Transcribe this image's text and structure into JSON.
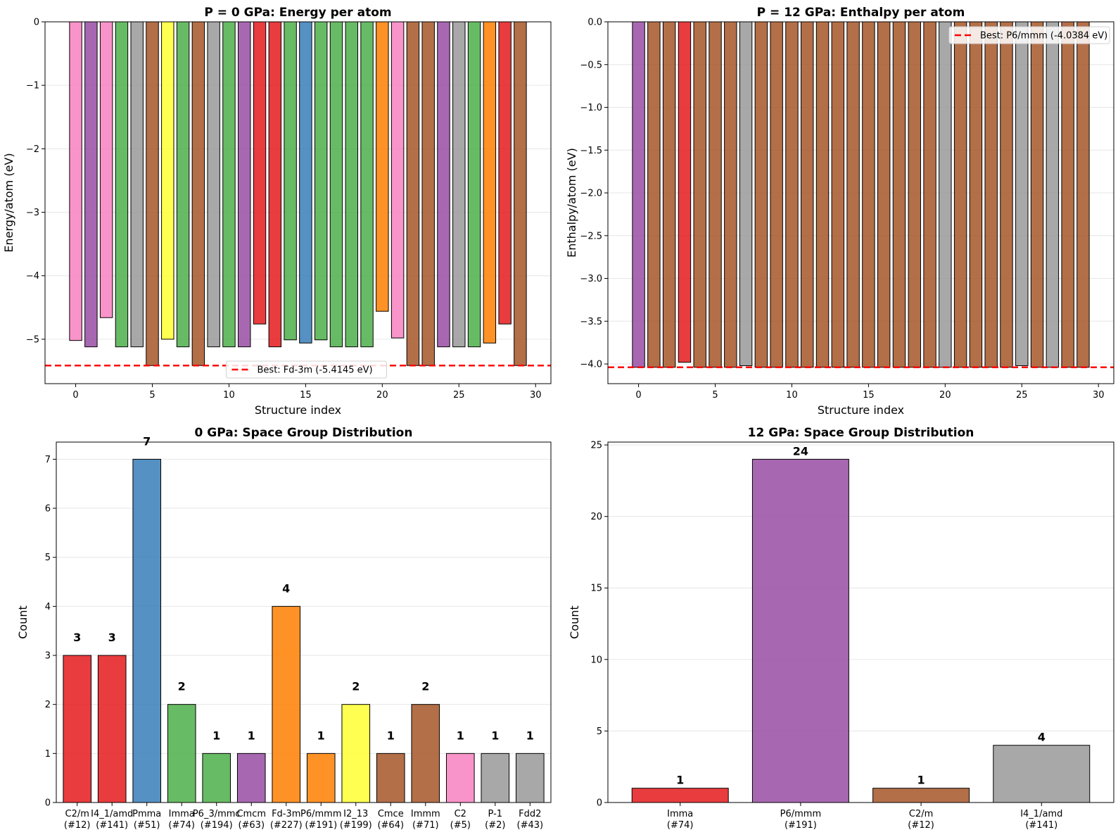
{
  "colors": {
    "red": "#e41a1c",
    "blue": "#377eb8",
    "green": "#4daf4a",
    "purple": "#984ea3",
    "orange": "#ff7f00",
    "yellow": "#ffff33",
    "brown": "#a65628",
    "pink": "#f781bf",
    "gray": "#999999",
    "best_line": "#ff0000"
  },
  "chart_data": [
    {
      "type": "bar",
      "title": "P = 0 GPa: Energy per atom",
      "xlabel": "Structure index",
      "ylabel": "Energy/atom (eV)",
      "x": [
        0,
        1,
        2,
        3,
        4,
        5,
        6,
        7,
        8,
        9,
        10,
        11,
        12,
        13,
        14,
        15,
        16,
        17,
        18,
        19,
        20,
        21,
        22,
        23,
        24,
        25,
        26,
        27,
        28,
        29
      ],
      "values": [
        -5.02,
        -5.12,
        -4.66,
        -5.12,
        -5.12,
        -5.4145,
        -5.0,
        -5.12,
        -5.4145,
        -5.12,
        -5.12,
        -5.12,
        -4.76,
        -5.12,
        -5.01,
        -5.06,
        -5.01,
        -5.12,
        -5.12,
        -5.12,
        -4.56,
        -4.98,
        -5.4145,
        -5.4145,
        -5.12,
        -5.12,
        -5.12,
        -5.06,
        -4.76,
        -5.4145
      ],
      "bar_colors": [
        "pink",
        "purple",
        "pink",
        "green",
        "gray",
        "brown",
        "yellow",
        "green",
        "brown",
        "gray",
        "green",
        "purple",
        "red",
        "red",
        "green",
        "blue",
        "green",
        "green",
        "green",
        "green",
        "orange",
        "pink",
        "brown",
        "brown",
        "purple",
        "gray",
        "green",
        "orange",
        "red",
        "brown"
      ],
      "xlim": [
        -2,
        31
      ],
      "ylim": [
        -5.7,
        0
      ],
      "xticks": [
        0,
        5,
        10,
        15,
        20,
        25,
        30
      ],
      "yticks": [
        0,
        -1,
        -2,
        -3,
        -4,
        -5
      ],
      "ytick_labels": [
        "0",
        "−1",
        "−2",
        "−3",
        "−4",
        "−5"
      ],
      "best_line": {
        "value": -5.4145,
        "label": "Best: Fd-3m (-5.4145 eV)"
      },
      "legend": "lower-center",
      "grid": "y"
    },
    {
      "type": "bar",
      "title": "P = 12 GPa: Enthalpy per atom",
      "xlabel": "Structure index",
      "ylabel": "Enthalpy/atom (eV)",
      "x": [
        0,
        1,
        2,
        3,
        4,
        5,
        6,
        7,
        8,
        9,
        10,
        11,
        12,
        13,
        14,
        15,
        16,
        17,
        18,
        19,
        20,
        21,
        22,
        23,
        24,
        25,
        26,
        27,
        28,
        29
      ],
      "values": [
        -4.0384,
        -4.0384,
        -4.0384,
        -3.98,
        -4.0384,
        -4.0384,
        -4.0384,
        -4.02,
        -4.0384,
        -4.0384,
        -4.0384,
        -4.0384,
        -4.0384,
        -4.0384,
        -4.0384,
        -4.0384,
        -4.0384,
        -4.0384,
        -4.0384,
        -4.0384,
        -4.0384,
        -4.0384,
        -4.0384,
        -4.0384,
        -4.0384,
        -4.02,
        -4.0384,
        -4.0384,
        -4.0384,
        -4.0384
      ],
      "bar_colors": [
        "purple",
        "brown",
        "brown",
        "red",
        "brown",
        "brown",
        "brown",
        "gray",
        "brown",
        "brown",
        "brown",
        "brown",
        "brown",
        "brown",
        "brown",
        "brown",
        "brown",
        "brown",
        "brown",
        "brown",
        "gray",
        "brown",
        "brown",
        "brown",
        "brown",
        "gray",
        "brown",
        "gray",
        "brown",
        "brown"
      ],
      "xlim": [
        -2,
        31
      ],
      "ylim": [
        -4.23,
        0
      ],
      "xticks": [
        0,
        5,
        10,
        15,
        20,
        25,
        30
      ],
      "yticks": [
        0,
        -0.5,
        -1,
        -1.5,
        -2,
        -2.5,
        -3,
        -3.5,
        -4
      ],
      "ytick_labels": [
        "0.0",
        "−0.5",
        "−1.0",
        "−1.5",
        "−2.0",
        "−2.5",
        "−3.0",
        "−3.5",
        "−4.0"
      ],
      "best_line": {
        "value": -4.0384,
        "label": "Best: P6/mmm (-4.0384 eV)"
      },
      "legend": "upper-right",
      "grid": "y"
    },
    {
      "type": "bar",
      "title": "0 GPa: Space Group Distribution",
      "xlabel": "",
      "ylabel": "Count",
      "categories": [
        "C2/m",
        "I4_1/amd",
        "Pmma",
        "Imma",
        "P6_3/mmc",
        "Cmcm",
        "Fd-3m",
        "P6/mmm",
        "I2_13",
        "Cmce",
        "Immm",
        "C2",
        "P-1",
        "Fdd2"
      ],
      "category_sub": [
        "(#12)",
        "(#141)",
        "(#51)",
        "(#74)",
        "(#194)",
        "(#63)",
        "(#227)",
        "(#191)",
        "(#199)",
        "(#64)",
        "(#71)",
        "(#5)",
        "(#2)",
        "(#43)"
      ],
      "values": [
        3,
        3,
        7,
        2,
        1,
        1,
        4,
        1,
        2,
        1,
        2,
        1,
        1,
        1
      ],
      "bar_colors": [
        "red",
        "red",
        "blue",
        "green",
        "green",
        "purple",
        "orange",
        "orange",
        "yellow",
        "brown",
        "brown",
        "pink",
        "gray",
        "gray"
      ],
      "ylim": [
        0,
        7.35
      ],
      "yticks": [
        0,
        1,
        2,
        3,
        4,
        5,
        6,
        7
      ],
      "ytick_labels": [
        "0",
        "1",
        "2",
        "3",
        "4",
        "5",
        "6",
        "7"
      ],
      "grid": "y"
    },
    {
      "type": "bar",
      "title": "12 GPa: Space Group Distribution",
      "xlabel": "",
      "ylabel": "Count",
      "categories": [
        "Imma",
        "P6/mmm",
        "C2/m",
        "I4_1/amd"
      ],
      "category_sub": [
        "(#74)",
        "(#191)",
        "(#12)",
        "(#141)"
      ],
      "values": [
        1,
        24,
        1,
        4
      ],
      "bar_colors": [
        "red",
        "purple",
        "brown",
        "gray"
      ],
      "ylim": [
        0,
        25.2
      ],
      "yticks": [
        0,
        5,
        10,
        15,
        20,
        25
      ],
      "ytick_labels": [
        "0",
        "5",
        "10",
        "15",
        "20",
        "25"
      ],
      "grid": "y"
    }
  ]
}
